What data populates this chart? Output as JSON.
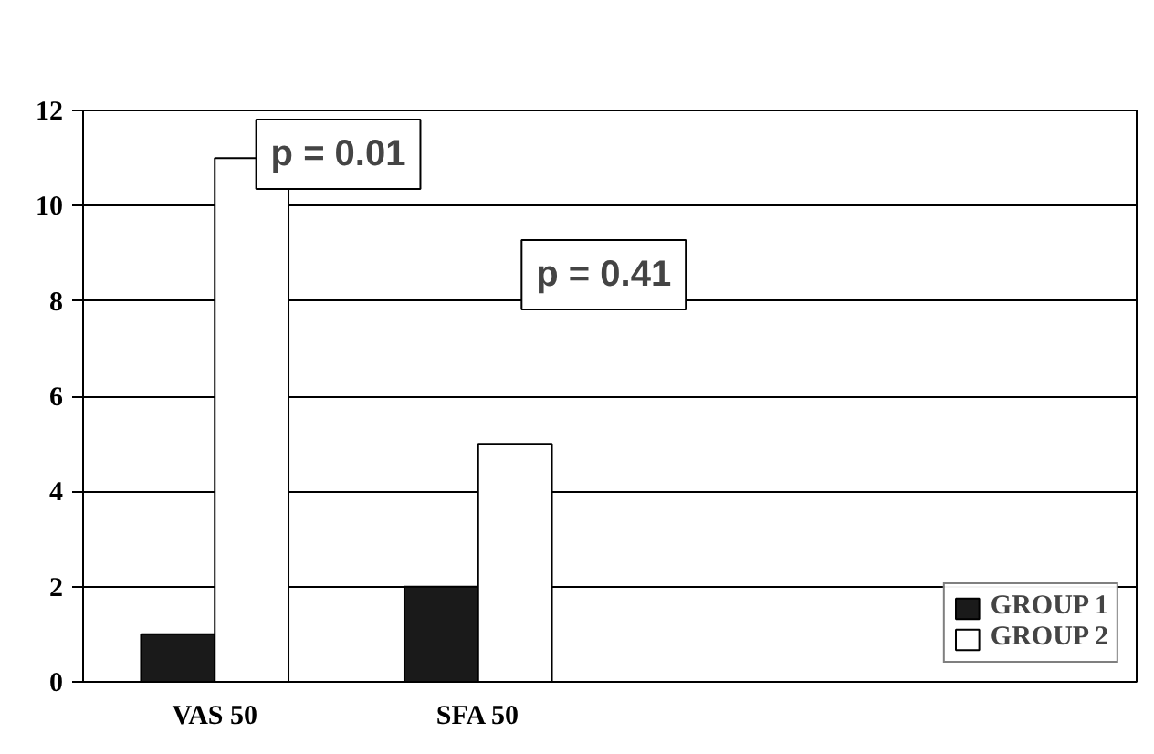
{
  "chart_data": {
    "type": "bar",
    "categories": [
      "VAS 50",
      "SFA 50",
      null,
      null
    ],
    "series": [
      {
        "name": "GROUP 1",
        "color": "#1a1a1a",
        "values": [
          1,
          2,
          null,
          null
        ]
      },
      {
        "name": "GROUP 2",
        "color": "#ffffff",
        "values": [
          11,
          5,
          null,
          null
        ]
      }
    ],
    "ylim": [
      0,
      12
    ],
    "yticks": [
      0,
      2,
      4,
      6,
      8,
      10,
      12
    ],
    "grid": "y",
    "legend": "bottom right",
    "annotations": [
      "p = 0.01",
      "p = 0.41"
    ]
  }
}
